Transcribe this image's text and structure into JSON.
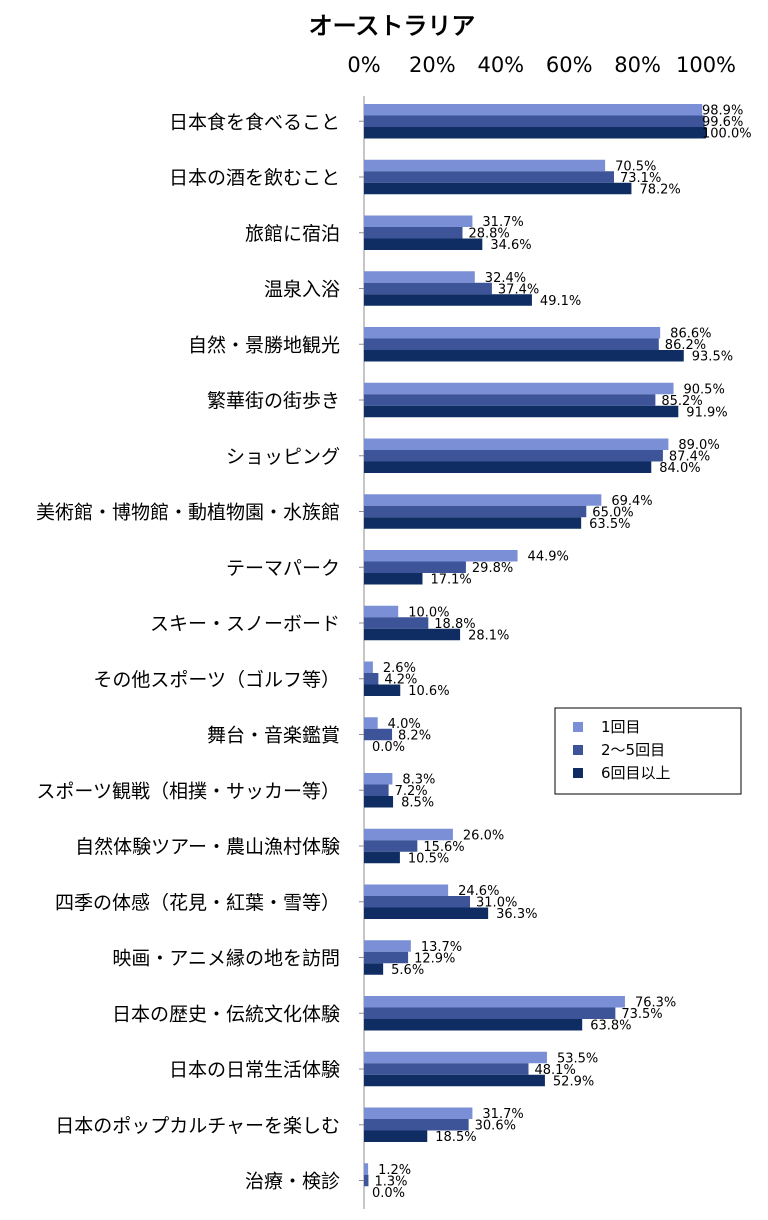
{
  "chart_data": {
    "type": "bar",
    "orientation": "horizontal",
    "title": "オーストラリア",
    "xlim": [
      0,
      100
    ],
    "xticks": [
      "0%",
      "20%",
      "40%",
      "60%",
      "80%",
      "100%"
    ],
    "grid": false,
    "legend_position": "right-middle",
    "categories": [
      "日本食を食べること",
      "日本の酒を飲むこと",
      "旅館に宿泊",
      "温泉入浴",
      "自然・景勝地観光",
      "繁華街の街歩き",
      "ショッピング",
      "美術館・博物館・動植物園・水族館",
      "テーマパーク",
      "スキー・スノーボード",
      "その他スポーツ（ゴルフ等）",
      "舞台・音楽鑑賞",
      "スポーツ観戦（相撲・サッカー等）",
      "自然体験ツアー・農山漁村体験",
      "四季の体感（花見・紅葉・雪等）",
      "映画・アニメ縁の地を訪問",
      "日本の歴史・伝統文化体験",
      "日本の日常生活体験",
      "日本のポップカルチャーを楽しむ",
      "治療・検診"
    ],
    "series": [
      {
        "name": "1回目",
        "color": "#7b8fd6",
        "values": [
          98.9,
          70.5,
          31.7,
          32.4,
          86.6,
          90.5,
          89.0,
          69.4,
          44.9,
          10.0,
          2.6,
          4.0,
          8.3,
          26.0,
          24.6,
          13.7,
          76.3,
          53.5,
          31.7,
          1.2
        ],
        "labels": [
          "98.9%",
          "70.5%",
          "31.7%",
          "32.4%",
          "86.6%",
          "90.5%",
          "89.0%",
          "69.4%",
          "44.9%",
          "10.0%",
          "2.6%",
          "4.0%",
          "8.3%",
          "26.0%",
          "24.6%",
          "13.7%",
          "76.3%",
          "53.5%",
          "31.7%",
          "1.2%"
        ]
      },
      {
        "name": "2～5回目",
        "color": "#3d5499",
        "values": [
          99.6,
          73.1,
          28.8,
          37.4,
          86.2,
          85.2,
          87.4,
          65.0,
          29.8,
          18.8,
          4.2,
          8.2,
          7.2,
          15.6,
          31.0,
          12.9,
          73.5,
          48.1,
          30.6,
          1.3
        ],
        "labels": [
          "99.6%",
          "73.1%",
          "28.8%",
          "37.4%",
          "86.2%",
          "85.2%",
          "87.4%",
          "65.0%",
          "29.8%",
          "18.8%",
          "4.2%",
          "8.2%",
          "7.2%",
          "15.6%",
          "31.0%",
          "12.9%",
          "73.5%",
          "48.1%",
          "30.6%",
          "1.3%"
        ]
      },
      {
        "name": "6回目以上",
        "color": "#0f2d63",
        "values": [
          100.0,
          78.2,
          34.6,
          49.1,
          93.5,
          91.9,
          84.0,
          63.5,
          17.1,
          28.1,
          10.6,
          0.0,
          8.5,
          10.5,
          36.3,
          5.6,
          63.8,
          52.9,
          18.5,
          0.0
        ],
        "labels": [
          "100.0%",
          "78.2%",
          "34.6%",
          "49.1%",
          "93.5%",
          "91.9%",
          "84.0%",
          "63.5%",
          "17.1%",
          "28.1%",
          "10.6%",
          "0.0%",
          "8.5%",
          "10.5%",
          "36.3%",
          "5.6%",
          "63.8%",
          "52.9%",
          "18.5%",
          "0.0%"
        ]
      }
    ]
  }
}
